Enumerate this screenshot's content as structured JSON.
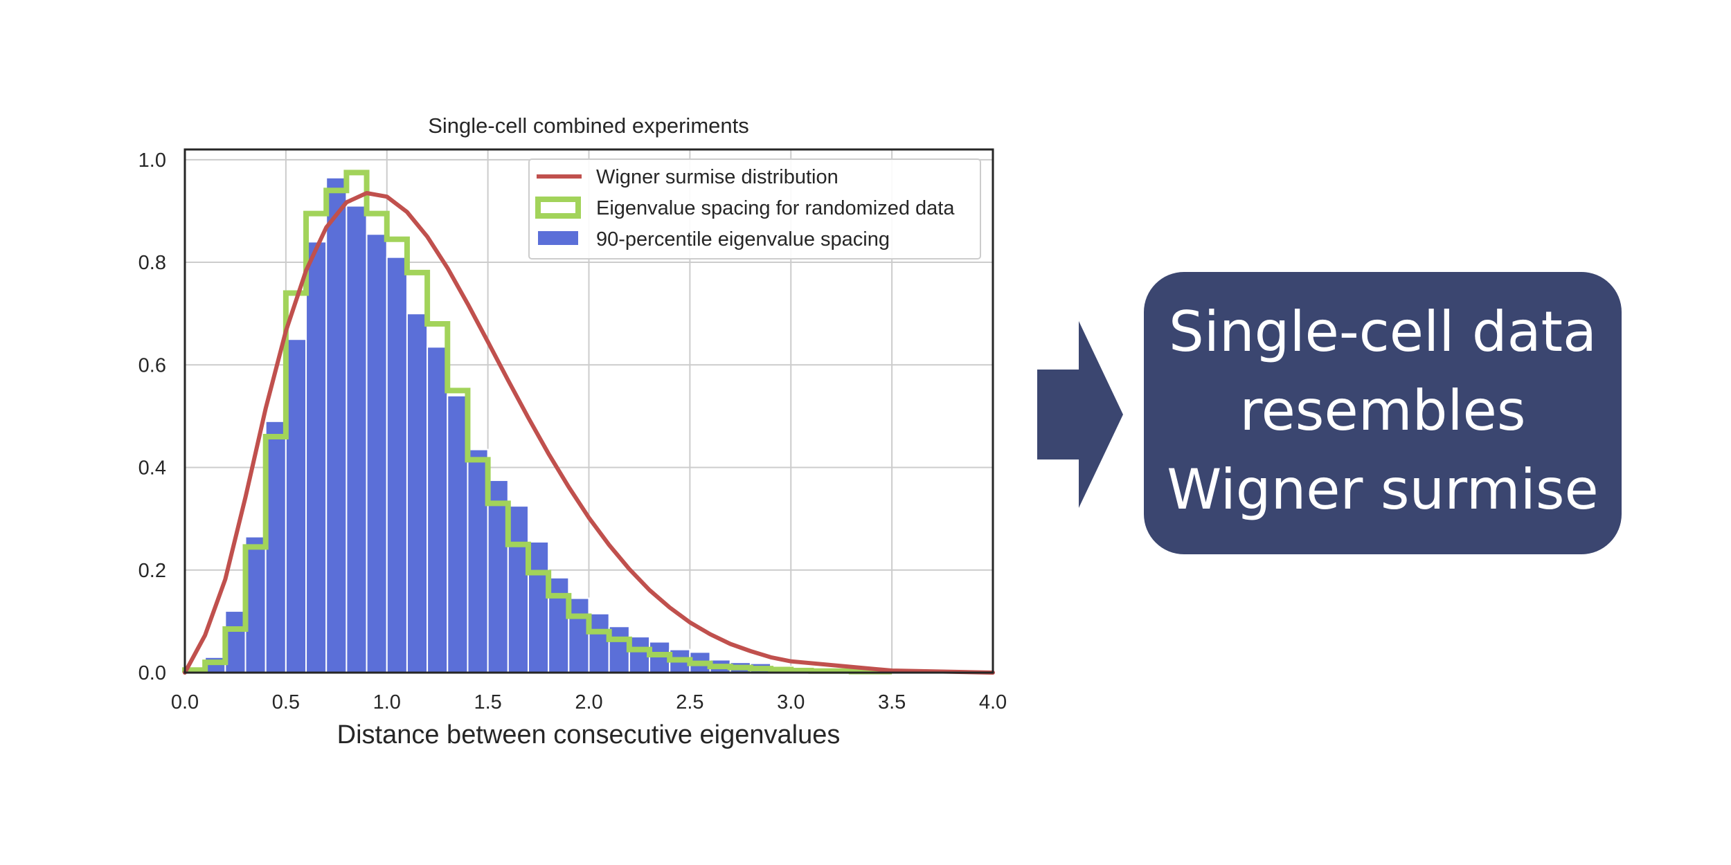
{
  "chart_data": {
    "type": "bar",
    "title": "Single-cell combined experiments",
    "xlabel": "Distance between consecutive eigenvalues",
    "ylabel": "",
    "xlim": [
      0,
      4
    ],
    "ylim": [
      0,
      1.02
    ],
    "grid": true,
    "legend_position": "top-right",
    "x_ticks": [
      "0.0",
      "0.5",
      "1.0",
      "1.5",
      "2.0",
      "2.5",
      "3.0",
      "3.5",
      "4.0"
    ],
    "y_ticks": [
      "0.0",
      "0.2",
      "0.4",
      "0.6",
      "0.8",
      "1.0"
    ],
    "series": [
      {
        "name": "90-percentile eigenvalue spacing",
        "kind": "histogram",
        "color": "#5b6fd8",
        "bin_edges": [
          0.0,
          0.1,
          0.2,
          0.3,
          0.4,
          0.5,
          0.6,
          0.7,
          0.8,
          0.9,
          1.0,
          1.1,
          1.2,
          1.3,
          1.4,
          1.5,
          1.6,
          1.7,
          1.8,
          1.9,
          2.0,
          2.1,
          2.2,
          2.3,
          2.4,
          2.5,
          2.6,
          2.7,
          2.8,
          2.9,
          3.0,
          3.1,
          3.2,
          3.3,
          3.4,
          3.5,
          3.6,
          3.7,
          3.8,
          3.9,
          4.0
        ],
        "values": [
          0.004,
          0.03,
          0.12,
          0.265,
          0.49,
          0.65,
          0.84,
          0.965,
          0.91,
          0.855,
          0.81,
          0.7,
          0.635,
          0.54,
          0.435,
          0.375,
          0.325,
          0.255,
          0.185,
          0.145,
          0.115,
          0.09,
          0.07,
          0.06,
          0.045,
          0.04,
          0.025,
          0.02,
          0.018,
          0.012,
          0.008,
          0.006,
          0.004,
          0.003,
          0.002,
          0.002,
          0.001,
          0.001,
          0.001,
          0.001
        ]
      },
      {
        "name": "Eigenvalue spacing for randomized data",
        "kind": "step",
        "color": "#a2d35a",
        "bin_edges": [
          0.0,
          0.1,
          0.2,
          0.3,
          0.4,
          0.5,
          0.6,
          0.7,
          0.8,
          0.9,
          1.0,
          1.1,
          1.2,
          1.3,
          1.4,
          1.5,
          1.6,
          1.7,
          1.8,
          1.9,
          2.0,
          2.1,
          2.2,
          2.3,
          2.4,
          2.5,
          2.6,
          2.7,
          2.8,
          2.9,
          3.0,
          3.1,
          3.2,
          3.3,
          3.4,
          3.5
        ],
        "values": [
          0.005,
          0.02,
          0.085,
          0.245,
          0.46,
          0.74,
          0.895,
          0.94,
          0.975,
          0.895,
          0.845,
          0.78,
          0.68,
          0.55,
          0.415,
          0.33,
          0.25,
          0.195,
          0.15,
          0.11,
          0.08,
          0.065,
          0.045,
          0.035,
          0.025,
          0.018,
          0.012,
          0.01,
          0.008,
          0.006,
          0.004,
          0.003,
          0.003,
          0.002,
          0.002
        ]
      },
      {
        "name": "Wigner surmise distribution",
        "kind": "line",
        "color": "#c0504d",
        "x": [
          0.0,
          0.1,
          0.2,
          0.3,
          0.4,
          0.5,
          0.6,
          0.7,
          0.8,
          0.9,
          1.0,
          1.1,
          1.2,
          1.3,
          1.4,
          1.5,
          1.6,
          1.7,
          1.8,
          1.9,
          2.0,
          2.1,
          2.2,
          2.3,
          2.4,
          2.5,
          2.6,
          2.7,
          2.8,
          2.9,
          3.0,
          3.5,
          4.0
        ],
        "y": [
          0.0,
          0.073,
          0.182,
          0.342,
          0.515,
          0.666,
          0.784,
          0.868,
          0.917,
          0.935,
          0.928,
          0.898,
          0.85,
          0.789,
          0.719,
          0.645,
          0.57,
          0.497,
          0.427,
          0.362,
          0.302,
          0.249,
          0.202,
          0.161,
          0.127,
          0.098,
          0.075,
          0.056,
          0.042,
          0.03,
          0.022,
          0.004,
          0.0
        ]
      }
    ]
  },
  "callout": {
    "lines": [
      "Single-cell data",
      "resembles",
      "Wigner surmise"
    ],
    "background": "#3b4670",
    "text_color": "#ffffff"
  },
  "arrow": {
    "color": "#3b4670",
    "icon": "right-arrow-icon"
  }
}
